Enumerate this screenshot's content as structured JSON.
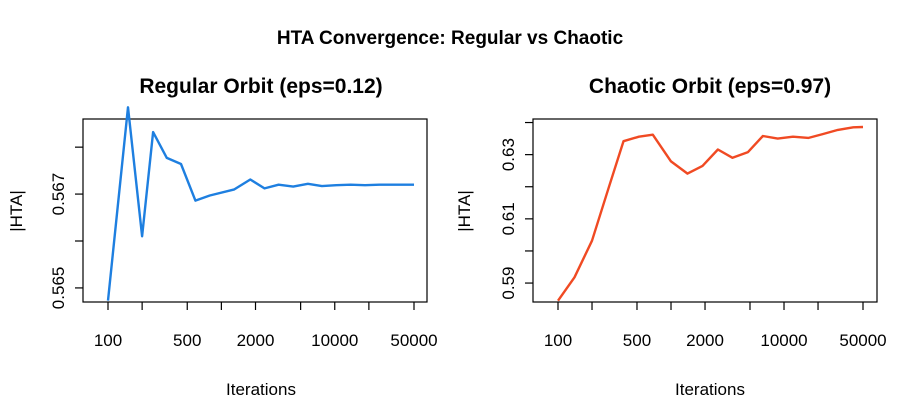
{
  "figure_title": "HTA Convergence: Regular vs Chaotic",
  "chart_data": [
    {
      "type": "line",
      "title": "Regular Orbit (eps=0.12)",
      "xlabel": "Iterations",
      "ylabel": "|HTA|",
      "x_scale": "log",
      "x_ticks": [
        100,
        200,
        500,
        1000,
        2000,
        5000,
        10000,
        20000,
        50000
      ],
      "x_tick_labels": [
        "100",
        "",
        "500",
        "",
        "2000",
        "",
        "10000",
        "",
        "50000"
      ],
      "y_ticks": [
        0.565,
        0.566,
        0.567,
        0.568
      ],
      "y_tick_labels": [
        "0.565",
        "",
        "0.567",
        ""
      ],
      "ylim": [
        0.5647,
        0.5686
      ],
      "color": "#1E7FE0",
      "x": [
        100,
        150,
        200,
        250,
        330,
        440,
        590,
        790,
        1300,
        1800,
        2400,
        3200,
        4300,
        5800,
        7700,
        10300,
        13800,
        18500,
        24700,
        33000,
        50000
      ],
      "y": [
        0.56473,
        0.56885,
        0.5661,
        0.56832,
        0.56777,
        0.56764,
        0.56686,
        0.56697,
        0.5671,
        0.56731,
        0.56712,
        0.5672,
        0.56716,
        0.56722,
        0.56717,
        0.56719,
        0.5672,
        0.56719,
        0.5672,
        0.5672,
        0.5672
      ]
    },
    {
      "type": "line",
      "title": "Chaotic Orbit (eps=0.97)",
      "xlabel": "Iterations",
      "ylabel": "|HTA|",
      "x_scale": "log",
      "x_ticks": [
        100,
        200,
        500,
        1000,
        2000,
        5000,
        10000,
        20000,
        50000
      ],
      "x_tick_labels": [
        "100",
        "",
        "500",
        "",
        "2000",
        "",
        "10000",
        "",
        "50000"
      ],
      "y_ticks": [
        0.59,
        0.6,
        0.61,
        0.62,
        0.63,
        0.64
      ],
      "y_tick_labels": [
        "0.59",
        "",
        "0.61",
        "",
        "0.63",
        ""
      ],
      "ylim": [
        0.5841,
        0.6411
      ],
      "color": "#F04A23",
      "x": [
        100,
        140,
        200,
        280,
        380,
        520,
        690,
        1000,
        1400,
        1900,
        2600,
        3500,
        4800,
        6500,
        8800,
        12000,
        16500,
        22000,
        30000,
        41000,
        50000
      ],
      "y": [
        0.5845,
        0.5918,
        0.6032,
        0.6195,
        0.6342,
        0.6356,
        0.6362,
        0.6279,
        0.6241,
        0.6265,
        0.6316,
        0.629,
        0.6308,
        0.6358,
        0.635,
        0.6356,
        0.6352,
        0.6364,
        0.6377,
        0.6385,
        0.6386
      ]
    }
  ]
}
